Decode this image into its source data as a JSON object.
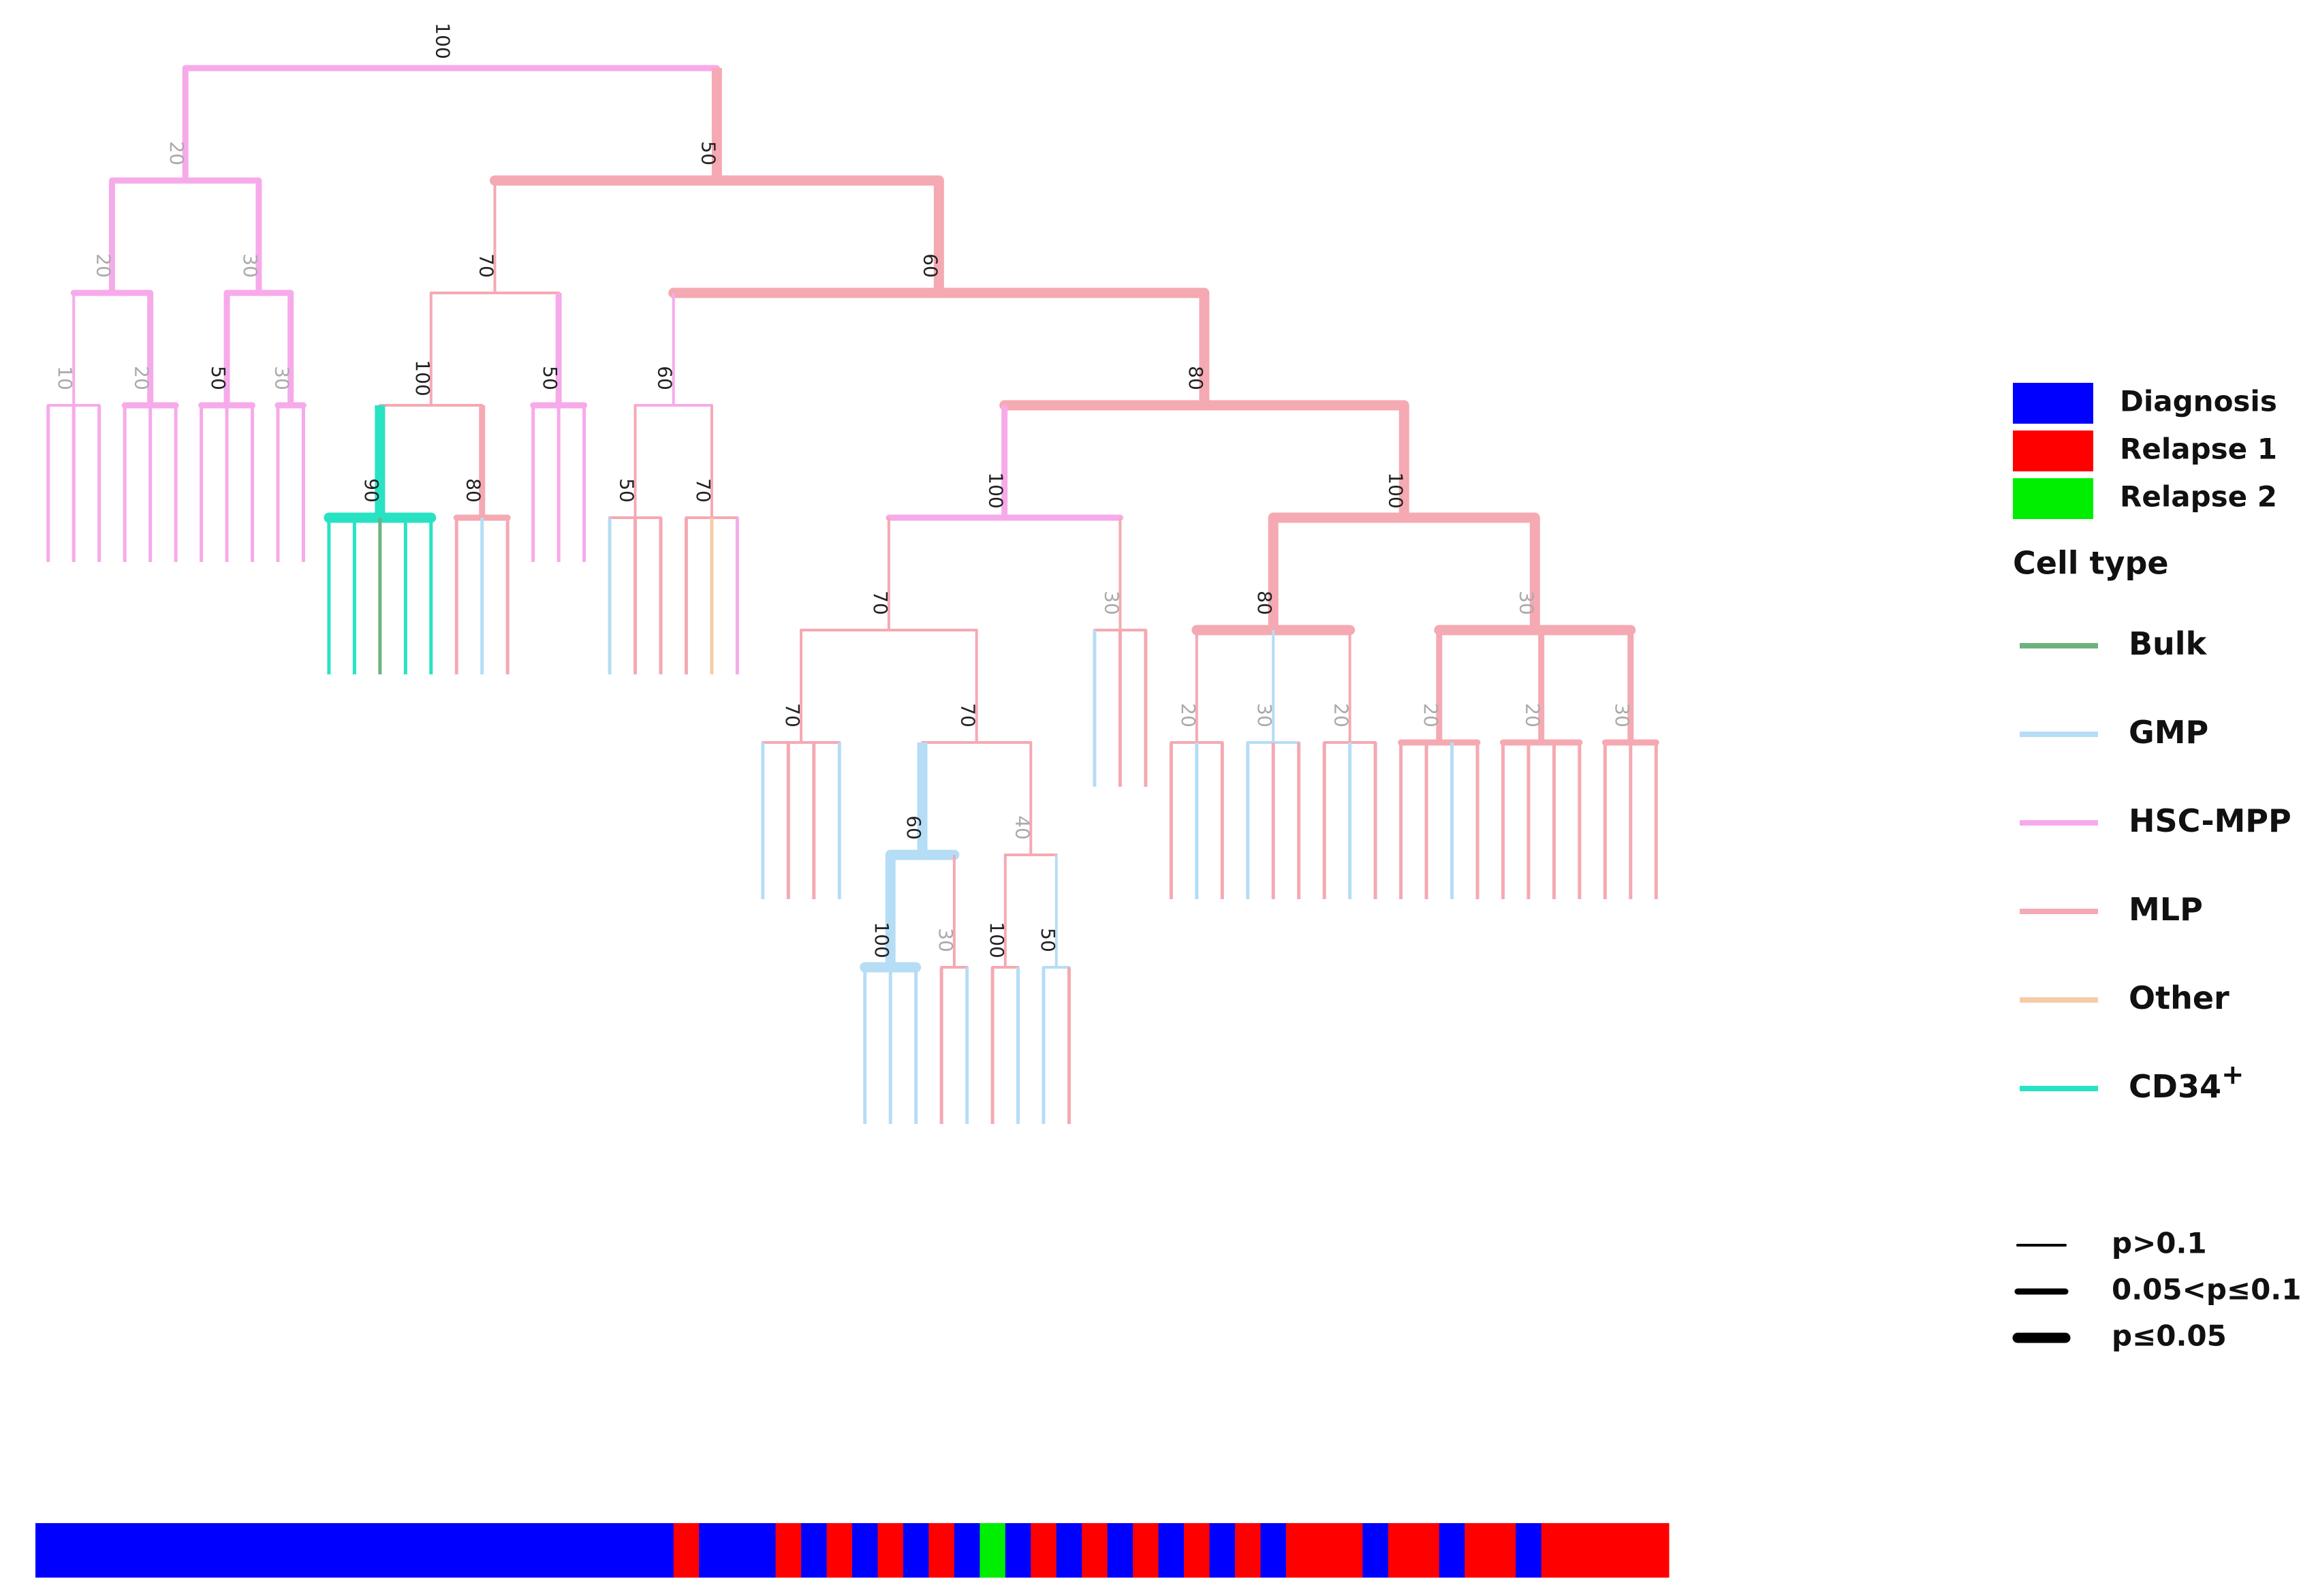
{
  "legend": {
    "samples": [
      {
        "name": "Diagnosis",
        "color": "#0000ff"
      },
      {
        "name": "Relapse 1",
        "color": "#ff0000"
      },
      {
        "name": "Relapse 2",
        "color": "#00ee00"
      }
    ],
    "cell_type_title": "Cell type",
    "cell_types": [
      {
        "name": "Bulk",
        "color": "#6db37e"
      },
      {
        "name": "GMP",
        "color": "#b5ddf5"
      },
      {
        "name": "HSC-MPP",
        "color": "#f7aaea"
      },
      {
        "name": "MLP",
        "color": "#f5a9b2"
      },
      {
        "name": "Other",
        "color": "#f5cca8"
      },
      {
        "name": "CD34",
        "sup": "+",
        "color": "#28e3c3"
      }
    ],
    "significance": [
      "p>0.1",
      "0.05<p≤0.1",
      "p≤0.05"
    ]
  },
  "tree": {
    "support": 100,
    "cell": "HSC-MPP",
    "sig": 1,
    "children": [
      {
        "support": 20,
        "cell": "HSC-MPP",
        "sig": 1,
        "children": [
          {
            "support": 20,
            "cell": "HSC-MPP",
            "sig": 1,
            "children": [
              {
                "support": 10,
                "cell": "HSC-MPP",
                "sig": 0,
                "children": [
                  {
                    "cell": "HSC-MPP",
                    "sample": "Diagnosis"
                  },
                  {
                    "cell": "HSC-MPP",
                    "sample": "Diagnosis"
                  },
                  {
                    "cell": "HSC-MPP",
                    "sample": "Diagnosis"
                  }
                ]
              },
              {
                "support": 20,
                "cell": "HSC-MPP",
                "sig": 1,
                "children": [
                  {
                    "cell": "HSC-MPP",
                    "sample": "Diagnosis"
                  },
                  {
                    "cell": "HSC-MPP",
                    "sample": "Diagnosis"
                  },
                  {
                    "cell": "HSC-MPP",
                    "sample": "Diagnosis"
                  }
                ]
              }
            ]
          },
          {
            "support": 30,
            "cell": "HSC-MPP",
            "sig": 1,
            "children": [
              {
                "support": 50,
                "cell": "HSC-MPP",
                "sig": 1,
                "children": [
                  {
                    "cell": "HSC-MPP",
                    "sample": "Diagnosis"
                  },
                  {
                    "cell": "HSC-MPP",
                    "sample": "Diagnosis"
                  },
                  {
                    "cell": "HSC-MPP",
                    "sample": "Diagnosis"
                  }
                ]
              },
              {
                "support": 30,
                "cell": "HSC-MPP",
                "sig": 1,
                "children": [
                  {
                    "cell": "HSC-MPP",
                    "sample": "Diagnosis"
                  },
                  {
                    "cell": "HSC-MPP",
                    "sample": "Diagnosis"
                  }
                ]
              }
            ]
          }
        ]
      },
      {
        "support": 50,
        "cell": "MLP",
        "sig": 2,
        "children": [
          {
            "support": 70,
            "cell": "MLP",
            "sig": 0,
            "children": [
              {
                "support": 100,
                "cell": "MLP",
                "sig": 0,
                "children": [
                  {
                    "support": 90,
                    "cell": "CD34",
                    "sig": 2,
                    "children": [
                      {
                        "cell": "CD34",
                        "sample": "Diagnosis"
                      },
                      {
                        "cell": "CD34",
                        "sample": "Diagnosis"
                      },
                      {
                        "cell": "Bulk",
                        "sample": "Diagnosis"
                      },
                      {
                        "cell": "CD34",
                        "sample": "Diagnosis"
                      },
                      {
                        "cell": "CD34",
                        "sample": "Diagnosis"
                      }
                    ]
                  },
                  {
                    "support": 80,
                    "cell": "MLP",
                    "sig": 1,
                    "children": [
                      {
                        "cell": "MLP",
                        "sample": "Diagnosis"
                      },
                      {
                        "cell": "GMP",
                        "sample": "Diagnosis"
                      },
                      {
                        "cell": "MLP",
                        "sample": "Diagnosis"
                      }
                    ]
                  }
                ]
              },
              {
                "support": 50,
                "cell": "HSC-MPP",
                "sig": 1,
                "children": [
                  {
                    "cell": "HSC-MPP",
                    "sample": "Diagnosis"
                  },
                  {
                    "cell": "HSC-MPP",
                    "sample": "Diagnosis"
                  },
                  {
                    "cell": "HSC-MPP",
                    "sample": "Diagnosis"
                  }
                ]
              }
            ]
          },
          {
            "support": 60,
            "cell": "MLP",
            "sig": 2,
            "children": [
              {
                "support": 60,
                "cell": "HSC-MPP",
                "sig": 0,
                "children": [
                  {
                    "support": 50,
                    "cell": "MLP",
                    "sig": 0,
                    "children": [
                      {
                        "cell": "GMP",
                        "sample": "Diagnosis"
                      },
                      {
                        "cell": "MLP",
                        "sample": "Diagnosis"
                      },
                      {
                        "cell": "MLP",
                        "sample": "Diagnosis"
                      }
                    ]
                  },
                  {
                    "support": 70,
                    "cell": "MLP",
                    "sig": 0,
                    "children": [
                      {
                        "cell": "MLP",
                        "sample": "Relapse 1"
                      },
                      {
                        "cell": "Other",
                        "sample": "Diagnosis"
                      },
                      {
                        "cell": "HSC-MPP",
                        "sample": "Diagnosis"
                      }
                    ]
                  }
                ]
              },
              {
                "support": 80,
                "cell": "MLP",
                "sig": 2,
                "children": [
                  {
                    "support": 100,
                    "cell": "HSC-MPP",
                    "sig": 1,
                    "children": [
                      {
                        "support": 70,
                        "cell": "MLP",
                        "sig": 0,
                        "children": [
                          {
                            "support": 70,
                            "cell": "MLP",
                            "sig": 0,
                            "children": [
                              {
                                "cell": "GMP",
                                "sample": "Diagnosis"
                              },
                              {
                                "cell": "MLP",
                                "sample": "Relapse 1"
                              },
                              {
                                "cell": "MLP",
                                "sample": "Diagnosis"
                              },
                              {
                                "cell": "GMP",
                                "sample": "Relapse 1"
                              }
                            ]
                          },
                          {
                            "support": 70,
                            "cell": "MLP",
                            "sig": 0,
                            "children": [
                              {
                                "support": 60,
                                "cell": "GMP",
                                "sig": 2,
                                "children": [
                                  {
                                    "support": 100,
                                    "cell": "GMP",
                                    "sig": 2,
                                    "children": [
                                      {
                                        "cell": "GMP",
                                        "sample": "Diagnosis"
                                      },
                                      {
                                        "cell": "GMP",
                                        "sample": "Relapse 1"
                                      },
                                      {
                                        "cell": "GMP",
                                        "sample": "Diagnosis"
                                      }
                                    ]
                                  },
                                  {
                                    "support": 30,
                                    "cell": "MLP",
                                    "sig": 0,
                                    "children": [
                                      {
                                        "cell": "MLP",
                                        "sample": "Relapse 1"
                                      },
                                      {
                                        "cell": "GMP",
                                        "sample": "Diagnosis"
                                      }
                                    ]
                                  }
                                ]
                              },
                              {
                                "support": 40,
                                "cell": "MLP",
                                "sig": 0,
                                "children": [
                                  {
                                    "support": 100,
                                    "cell": "MLP",
                                    "sig": 0,
                                    "children": [
                                      {
                                        "cell": "MLP",
                                        "sample": "Relapse 2"
                                      },
                                      {
                                        "cell": "GMP",
                                        "sample": "Diagnosis"
                                      }
                                    ]
                                  },
                                  {
                                    "support": 50,
                                    "cell": "GMP",
                                    "sig": 0,
                                    "children": [
                                      {
                                        "cell": "GMP",
                                        "sample": "Relapse 1"
                                      },
                                      {
                                        "cell": "MLP",
                                        "sample": "Diagnosis"
                                      }
                                    ]
                                  }
                                ]
                              }
                            ]
                          }
                        ]
                      },
                      {
                        "support": 30,
                        "cell": "MLP",
                        "sig": 0,
                        "children": [
                          {
                            "cell": "GMP",
                            "sample": "Relapse 1"
                          },
                          {
                            "cell": "MLP",
                            "sample": "Diagnosis"
                          },
                          {
                            "cell": "MLP",
                            "sample": "Relapse 1"
                          }
                        ]
                      }
                    ]
                  },
                  {
                    "support": 100,
                    "cell": "MLP",
                    "sig": 2,
                    "children": [
                      {
                        "support": 80,
                        "cell": "MLP",
                        "sig": 2,
                        "children": [
                          {
                            "support": 20,
                            "cell": "MLP",
                            "sig": 0,
                            "children": [
                              {
                                "cell": "MLP",
                                "sample": "Diagnosis"
                              },
                              {
                                "cell": "GMP",
                                "sample": "Relapse 1"
                              },
                              {
                                "cell": "MLP",
                                "sample": "Diagnosis"
                              }
                            ]
                          },
                          {
                            "support": 30,
                            "cell": "GMP",
                            "sig": 0,
                            "children": [
                              {
                                "cell": "GMP",
                                "sample": "Relapse 1"
                              },
                              {
                                "cell": "MLP",
                                "sample": "Diagnosis"
                              },
                              {
                                "cell": "MLP",
                                "sample": "Relapse 1"
                              }
                            ]
                          },
                          {
                            "support": 20,
                            "cell": "MLP",
                            "sig": 0,
                            "children": [
                              {
                                "cell": "MLP",
                                "sample": "Relapse 1"
                              },
                              {
                                "cell": "GMP",
                                "sample": "Relapse 1"
                              },
                              {
                                "cell": "MLP",
                                "sample": "Diagnosis"
                              }
                            ]
                          }
                        ]
                      },
                      {
                        "support": 30,
                        "cell": "MLP",
                        "sig": 2,
                        "children": [
                          {
                            "support": 20,
                            "cell": "MLP",
                            "sig": 1,
                            "children": [
                              {
                                "cell": "MLP",
                                "sample": "Relapse 1"
                              },
                              {
                                "cell": "MLP",
                                "sample": "Relapse 1"
                              },
                              {
                                "cell": "GMP",
                                "sample": "Diagnosis"
                              },
                              {
                                "cell": "MLP",
                                "sample": "Relapse 1"
                              }
                            ]
                          },
                          {
                            "support": 20,
                            "cell": "MLP",
                            "sig": 1,
                            "children": [
                              {
                                "cell": "MLP",
                                "sample": "Relapse 1"
                              },
                              {
                                "cell": "MLP",
                                "sample": "Diagnosis"
                              },
                              {
                                "cell": "MLP",
                                "sample": "Relapse 1"
                              },
                              {
                                "cell": "MLP",
                                "sample": "Relapse 1"
                              }
                            ]
                          },
                          {
                            "support": 30,
                            "cell": "MLP",
                            "sig": 1,
                            "children": [
                              {
                                "cell": "MLP",
                                "sample": "Relapse 1"
                              },
                              {
                                "cell": "MLP",
                                "sample": "Relapse 1"
                              },
                              {
                                "cell": "MLP",
                                "sample": "Relapse 1"
                              }
                            ]
                          }
                        ]
                      }
                    ]
                  }
                ]
              }
            ]
          }
        ]
      }
    ]
  }
}
